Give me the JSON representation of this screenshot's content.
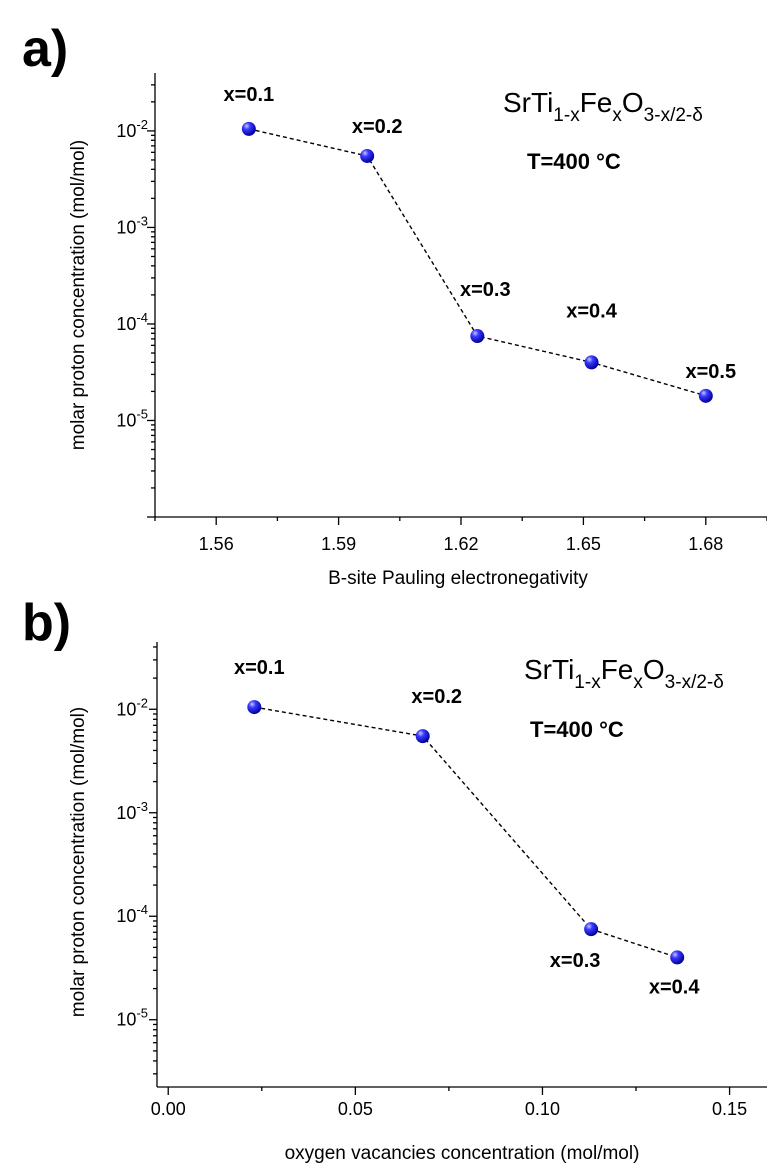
{
  "chart_data": [
    {
      "panel": "a)",
      "type": "scatter",
      "xlabel": "B-site Pauling electronegativity",
      "ylabel": "molar proton concentration (mol/mol)",
      "formula": {
        "base": "SrTi",
        "sub1": "1-x",
        "mid": "Fe",
        "sub2": "x",
        "end": "O",
        "sub3": "3-x/2-δ"
      },
      "temperature": "T=400 °C",
      "x_ticks": [
        "1.56",
        "1.59",
        "1.62",
        "1.65",
        "1.68"
      ],
      "y_ticks": [
        {
          "base": "10",
          "exp": "-2"
        },
        {
          "base": "10",
          "exp": "-3"
        },
        {
          "base": "10",
          "exp": "-4"
        },
        {
          "base": "10",
          "exp": "-5"
        }
      ],
      "xlim": [
        1.545,
        1.695
      ],
      "ylim_log10": [
        -6.0,
        -1.4
      ],
      "y_scale": "log",
      "connected": true,
      "points": [
        {
          "label": "x=0.1",
          "x": 1.568,
          "y": 0.0105
        },
        {
          "label": "x=0.2",
          "x": 1.597,
          "y": 0.0055
        },
        {
          "label": "x=0.3",
          "x": 1.624,
          "y": 7.5e-05
        },
        {
          "label": "x=0.4",
          "x": 1.652,
          "y": 4e-05
        },
        {
          "label": "x=0.5",
          "x": 1.68,
          "y": 1.8e-05
        }
      ]
    },
    {
      "panel": "b)",
      "type": "scatter",
      "xlabel": "oxygen vacancies concentration (mol/mol)",
      "ylabel": "molar proton concentration (mol/mol)",
      "formula": {
        "base": "SrTi",
        "sub1": "1-x",
        "mid": "Fe",
        "sub2": "x",
        "end": "O",
        "sub3": "3-x/2-δ"
      },
      "temperature": "T=400 °C",
      "x_ticks": [
        "0.00",
        "0.05",
        "0.10",
        "0.15"
      ],
      "y_ticks": [
        {
          "base": "10",
          "exp": "-2"
        },
        {
          "base": "10",
          "exp": "-3"
        },
        {
          "base": "10",
          "exp": "-4"
        },
        {
          "base": "10",
          "exp": "-5"
        }
      ],
      "xlim": [
        -0.003,
        0.16
      ],
      "ylim_log10": [
        -5.65,
        -1.35
      ],
      "y_scale": "log",
      "connected": true,
      "points": [
        {
          "label": "x=0.1",
          "x": 0.023,
          "y": 0.0105
        },
        {
          "label": "x=0.2",
          "x": 0.068,
          "y": 0.0055
        },
        {
          "label": "x=0.3",
          "x": 0.113,
          "y": 7.5e-05
        },
        {
          "label": "x=0.4",
          "x": 0.136,
          "y": 4e-05
        }
      ]
    }
  ]
}
